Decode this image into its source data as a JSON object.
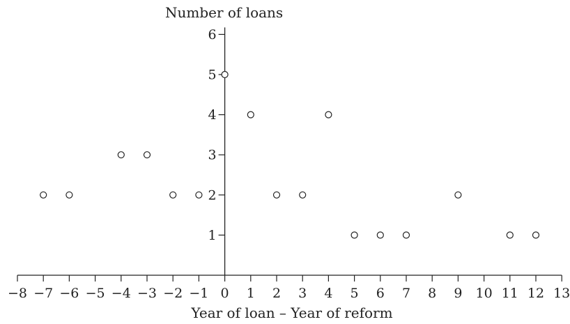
{
  "chart_data": {
    "type": "scatter",
    "xlabel": "Year of loan – Year of reform",
    "ylabel": "Number of loans",
    "xlim": [
      -8,
      13
    ],
    "ylim": [
      0,
      6
    ],
    "x_ticks": [
      -8,
      -7,
      -6,
      -5,
      -4,
      -3,
      -2,
      -1,
      0,
      1,
      2,
      3,
      4,
      5,
      6,
      7,
      8,
      9,
      10,
      11,
      12,
      13
    ],
    "y_ticks": [
      1,
      2,
      3,
      4,
      5,
      6
    ],
    "grid": false,
    "marker": "open-circle",
    "points": [
      {
        "x": -7,
        "y": 2
      },
      {
        "x": -6,
        "y": 2
      },
      {
        "x": -4,
        "y": 3
      },
      {
        "x": -3,
        "y": 3
      },
      {
        "x": -2,
        "y": 2
      },
      {
        "x": -1,
        "y": 2
      },
      {
        "x": 0,
        "y": 5
      },
      {
        "x": 1,
        "y": 4
      },
      {
        "x": 2,
        "y": 2
      },
      {
        "x": 3,
        "y": 2
      },
      {
        "x": 4,
        "y": 4
      },
      {
        "x": 5,
        "y": 1
      },
      {
        "x": 6,
        "y": 1
      },
      {
        "x": 7,
        "y": 1
      },
      {
        "x": 9,
        "y": 2
      },
      {
        "x": 11,
        "y": 1
      },
      {
        "x": 12,
        "y": 1
      }
    ]
  }
}
